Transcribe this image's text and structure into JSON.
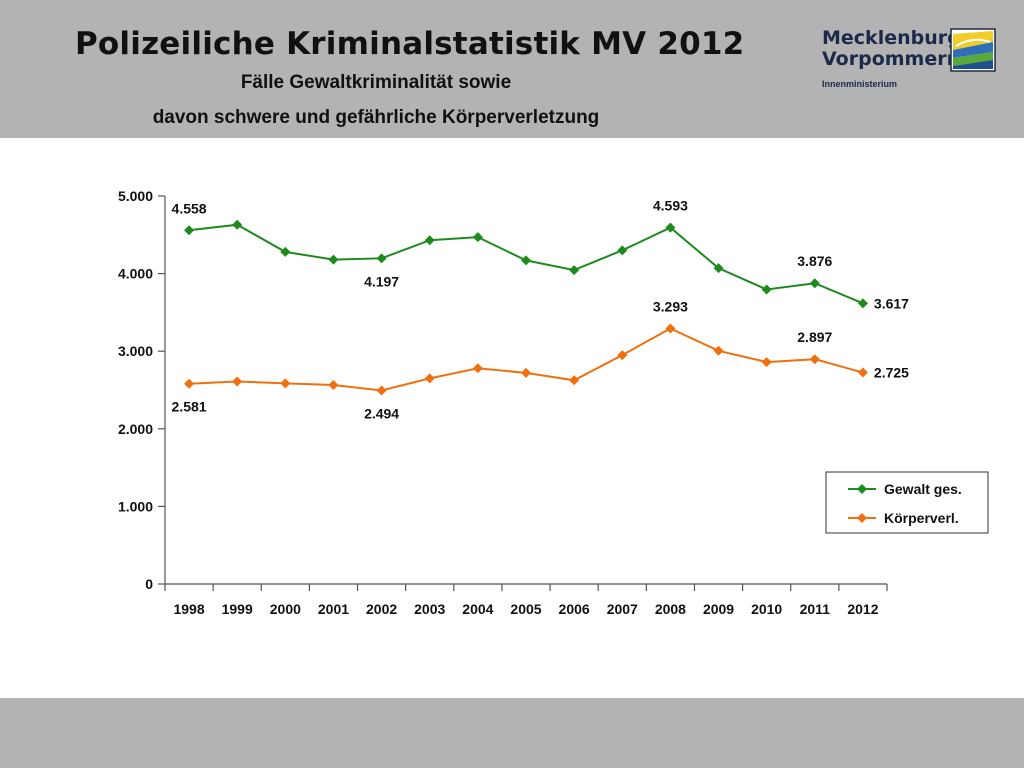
{
  "header": {
    "title": "Polizeiliche Kriminalstatistik MV 2012",
    "subtitle_line1": "Fälle Gewaltkriminalität sowie",
    "subtitle_line2": "davon schwere und gefährliche Körperverletzung"
  },
  "logo": {
    "line1": "Mecklenburg",
    "line2": "Vorpommern",
    "ministry": "Innenministerium"
  },
  "colors": {
    "header_background": "#b3b3b3",
    "gewalt": "#1e8a1e",
    "koerperverletzung": "#f07010"
  },
  "chart_data": {
    "type": "line",
    "x": [
      "1998",
      "1999",
      "2000",
      "2001",
      "2002",
      "2003",
      "2004",
      "2005",
      "2006",
      "2007",
      "2008",
      "2009",
      "2010",
      "2011",
      "2012"
    ],
    "ylim": [
      0,
      5000
    ],
    "yticks": [
      0,
      1000,
      2000,
      3000,
      4000,
      5000
    ],
    "ytick_labels": [
      "0",
      "1.000",
      "2.000",
      "3.000",
      "4.000",
      "5.000"
    ],
    "grid": false,
    "legend_position": "right",
    "series": [
      {
        "name": "Gewalt ges.",
        "color": "#1e8a1e",
        "values": [
          4558,
          4630,
          4280,
          4180,
          4197,
          4430,
          4470,
          4170,
          4045,
          4300,
          4593,
          4070,
          3795,
          3876,
          3617
        ],
        "labels": [
          {
            "index": 0,
            "text": "4.558",
            "position": "above"
          },
          {
            "index": 4,
            "text": "4.197",
            "position": "below"
          },
          {
            "index": 10,
            "text": "4.593",
            "position": "above"
          },
          {
            "index": 13,
            "text": "3.876",
            "position": "above"
          },
          {
            "index": 14,
            "text": "3.617",
            "position": "right"
          }
        ]
      },
      {
        "name": "Körperverl.",
        "color": "#f07010",
        "values": [
          2581,
          2610,
          2585,
          2565,
          2494,
          2650,
          2780,
          2720,
          2625,
          2950,
          3293,
          3005,
          2860,
          2897,
          2725
        ],
        "labels": [
          {
            "index": 0,
            "text": "2.581",
            "position": "below"
          },
          {
            "index": 4,
            "text": "2.494",
            "position": "below"
          },
          {
            "index": 10,
            "text": "3.293",
            "position": "above"
          },
          {
            "index": 13,
            "text": "2.897",
            "position": "above"
          },
          {
            "index": 14,
            "text": "2.725",
            "position": "right"
          }
        ]
      }
    ]
  }
}
